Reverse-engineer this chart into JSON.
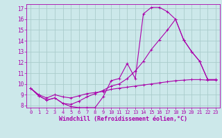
{
  "xlabel": "Windchill (Refroidissement éolien,°C)",
  "background_color": "#cce8ea",
  "grid_color": "#aacccc",
  "line_color": "#aa00aa",
  "xlim": [
    -0.5,
    23.5
  ],
  "ylim": [
    7.8,
    17.4
  ],
  "xticks": [
    0,
    1,
    2,
    3,
    4,
    5,
    6,
    7,
    8,
    9,
    10,
    11,
    12,
    13,
    14,
    15,
    16,
    17,
    18,
    19,
    20,
    21,
    22,
    23
  ],
  "yticks": [
    8,
    9,
    10,
    11,
    12,
    13,
    14,
    15,
    16,
    17
  ],
  "curve1_x": [
    0,
    1,
    2,
    3,
    4,
    5,
    6,
    7,
    8,
    9,
    10,
    11,
    12,
    13,
    14,
    15,
    16,
    17,
    18,
    19,
    20,
    21,
    22,
    23
  ],
  "curve1_y": [
    9.6,
    8.9,
    8.5,
    8.7,
    8.2,
    7.9,
    7.8,
    7.8,
    7.8,
    8.8,
    10.3,
    10.5,
    11.9,
    10.5,
    16.5,
    17.1,
    17.1,
    16.7,
    16.0,
    14.1,
    13.0,
    12.1,
    10.4,
    10.4
  ],
  "curve2_x": [
    0,
    1,
    2,
    3,
    4,
    5,
    6,
    7,
    8,
    9,
    10,
    11,
    12,
    13,
    14,
    15,
    16,
    17,
    18,
    19,
    20,
    21,
    22,
    23
  ],
  "curve2_y": [
    9.6,
    8.9,
    8.5,
    8.7,
    8.2,
    8.1,
    8.4,
    8.8,
    9.1,
    9.4,
    9.8,
    10.0,
    10.5,
    11.2,
    12.1,
    13.2,
    14.1,
    15.0,
    16.0,
    14.1,
    13.0,
    12.1,
    10.4,
    10.4
  ],
  "curve3_x": [
    0,
    1,
    2,
    3,
    4,
    5,
    6,
    7,
    8,
    9,
    10,
    11,
    12,
    13,
    14,
    15,
    16,
    17,
    18,
    19,
    20,
    21,
    22,
    23
  ],
  "curve3_y": [
    9.6,
    9.0,
    8.7,
    9.0,
    8.8,
    8.7,
    8.9,
    9.1,
    9.2,
    9.3,
    9.5,
    9.6,
    9.7,
    9.8,
    9.9,
    10.0,
    10.1,
    10.2,
    10.3,
    10.35,
    10.4,
    10.4,
    10.35,
    10.35
  ]
}
